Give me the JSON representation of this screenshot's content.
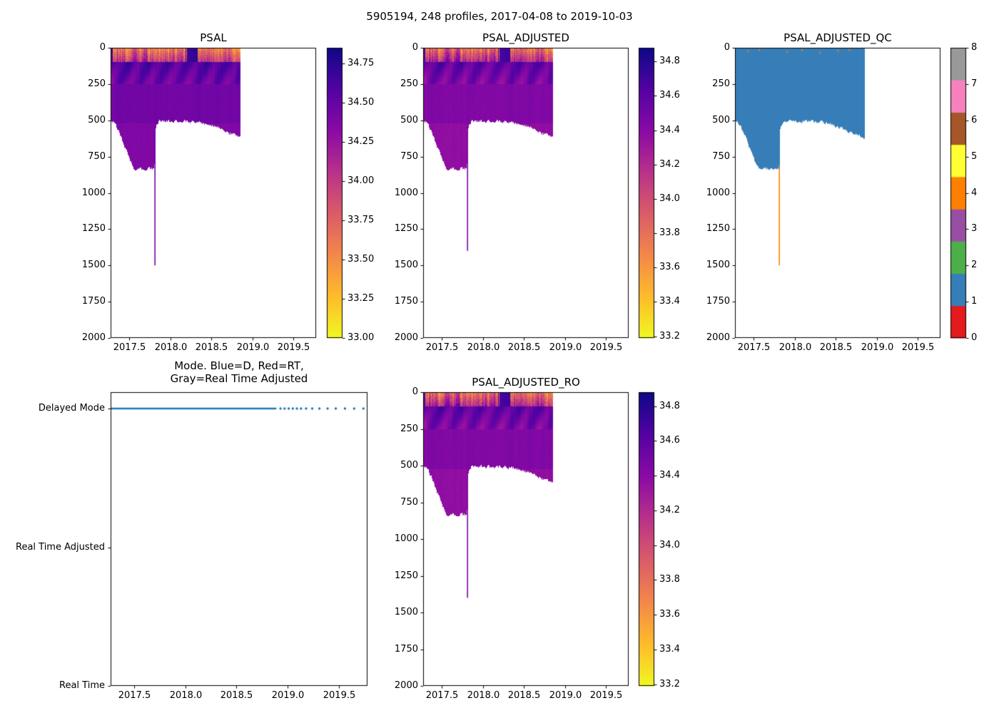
{
  "figure": {
    "title": "5905194, 248 profiles, 2017-04-08 to 2019-10-03"
  },
  "chart_data": [
    {
      "id": "psal",
      "type": "heatmap",
      "title": "PSAL",
      "xlim": [
        2017.27,
        2019.78
      ],
      "ylim": [
        2000,
        0
      ],
      "x_tick_labels": [
        "2017.5",
        "2018.0",
        "2018.5",
        "2019.0",
        "2019.5"
      ],
      "x_tick_values": [
        2017.5,
        2018.0,
        2018.5,
        2019.0,
        2019.5
      ],
      "y_tick_labels": [
        "0",
        "250",
        "500",
        "750",
        "1000",
        "1250",
        "1500",
        "1750",
        "2000"
      ],
      "y_tick_values": [
        0,
        250,
        500,
        750,
        1000,
        1250,
        1500,
        1750,
        2000
      ],
      "colormap": "plasma_reversed",
      "colorbar": {
        "vmin": 33.0,
        "vmax": 34.85,
        "tick_labels": [
          "34.75",
          "34.50",
          "34.25",
          "34.00",
          "33.75",
          "33.50",
          "33.25",
          "33.00"
        ],
        "tick_values": [
          34.75,
          34.5,
          34.25,
          34.0,
          33.75,
          33.5,
          33.25,
          33.0
        ]
      },
      "data": {
        "time_start": 2017.27,
        "time_end": 2018.85,
        "surface": {
          "max_depth": 95,
          "salinity_range": [
            33.0,
            34.2
          ],
          "dark_patch_salinity_range": [
            34.55,
            34.85
          ]
        },
        "subsurface": {
          "depth_range": [
            95,
            250
          ],
          "salinity_range": [
            34.2,
            34.8
          ]
        },
        "body": {
          "depth_range": [
            250,
            520
          ],
          "salinity_center": 34.44
        },
        "deep": {
          "salinity_center": 34.37
        },
        "bottom_depth_profile": [
          [
            2017.27,
            500
          ],
          [
            2017.32,
            520
          ],
          [
            2017.38,
            590
          ],
          [
            2017.44,
            680
          ],
          [
            2017.5,
            770
          ],
          [
            2017.56,
            830
          ],
          [
            2017.8,
            830
          ],
          [
            2017.82,
            540
          ],
          [
            2017.86,
            505
          ],
          [
            2018.3,
            505
          ],
          [
            2018.45,
            525
          ],
          [
            2018.6,
            555
          ],
          [
            2018.72,
            585
          ],
          [
            2018.85,
            620
          ]
        ],
        "spike": {
          "time": 2017.805,
          "depth": 1500,
          "salinity": 34.45
        }
      }
    },
    {
      "id": "psal_adjusted",
      "type": "heatmap",
      "title": "PSAL_ADJUSTED",
      "xlim": [
        2017.27,
        2019.78
      ],
      "ylim": [
        2000,
        0
      ],
      "x_tick_labels": [
        "2017.5",
        "2018.0",
        "2018.5",
        "2019.0",
        "2019.5"
      ],
      "x_tick_values": [
        2017.5,
        2018.0,
        2018.5,
        2019.0,
        2019.5
      ],
      "y_tick_labels": [
        "0",
        "250",
        "500",
        "750",
        "1000",
        "1250",
        "1500",
        "1750",
        "2000"
      ],
      "y_tick_values": [
        0,
        250,
        500,
        750,
        1000,
        1250,
        1500,
        1750,
        2000
      ],
      "colormap": "plasma_reversed",
      "colorbar": {
        "vmin": 33.19,
        "vmax": 34.88,
        "tick_labels": [
          "34.8",
          "34.6",
          "34.4",
          "34.2",
          "34.0",
          "33.8",
          "33.6",
          "33.4",
          "33.2"
        ],
        "tick_values": [
          34.8,
          34.6,
          34.4,
          34.2,
          34.0,
          33.8,
          33.6,
          33.4,
          33.2
        ]
      },
      "data": {
        "time_start": 2017.27,
        "time_end": 2018.85,
        "surface": {
          "max_depth": 95,
          "salinity_range": [
            33.2,
            34.2
          ],
          "dark_patch_salinity_range": [
            34.55,
            34.88
          ]
        },
        "subsurface": {
          "depth_range": [
            95,
            250
          ],
          "salinity_range": [
            34.2,
            34.8
          ]
        },
        "body": {
          "depth_range": [
            250,
            520
          ],
          "salinity_center": 34.44
        },
        "deep": {
          "salinity_center": 34.37
        },
        "bottom_depth_profile": [
          [
            2017.27,
            500
          ],
          [
            2017.32,
            520
          ],
          [
            2017.38,
            590
          ],
          [
            2017.44,
            680
          ],
          [
            2017.5,
            770
          ],
          [
            2017.56,
            830
          ],
          [
            2017.8,
            830
          ],
          [
            2017.82,
            540
          ],
          [
            2017.86,
            505
          ],
          [
            2018.3,
            505
          ],
          [
            2018.45,
            525
          ],
          [
            2018.6,
            555
          ],
          [
            2018.72,
            585
          ],
          [
            2018.85,
            620
          ]
        ],
        "spike": {
          "time": 2017.805,
          "depth": 1400,
          "salinity": 34.45
        }
      }
    },
    {
      "id": "psal_adjusted_qc",
      "type": "heatmap",
      "title": "PSAL_ADJUSTED_QC",
      "xlim": [
        2017.27,
        2019.78
      ],
      "ylim": [
        2000,
        0
      ],
      "x_tick_labels": [
        "2017.5",
        "2018.0",
        "2018.5",
        "2019.0",
        "2019.5"
      ],
      "x_tick_values": [
        2017.5,
        2018.0,
        2018.5,
        2019.0,
        2019.5
      ],
      "y_tick_labels": [
        "0",
        "250",
        "500",
        "750",
        "1000",
        "1250",
        "1500",
        "1750",
        "2000"
      ],
      "y_tick_values": [
        0,
        250,
        500,
        750,
        1000,
        1250,
        1500,
        1750,
        2000
      ],
      "colormap": "qc_discrete",
      "colorbar": {
        "discrete": true,
        "tick_labels": [
          "0",
          "1",
          "2",
          "3",
          "4",
          "5",
          "6",
          "7",
          "8"
        ],
        "tick_values": [
          0,
          1,
          2,
          3,
          4,
          5,
          6,
          7,
          8
        ],
        "colors": [
          "#e41a1c",
          "#377eb8",
          "#4daf4a",
          "#984ea3",
          "#ff7f00",
          "#ffff33",
          "#a65628",
          "#f781bf",
          "#999999"
        ]
      },
      "data": {
        "time_start": 2017.27,
        "time_end": 2018.85,
        "main_qc_flag": 1,
        "main_qc_color": "#377eb8",
        "bottom_depth_profile": [
          [
            2017.27,
            500
          ],
          [
            2017.32,
            520
          ],
          [
            2017.38,
            590
          ],
          [
            2017.44,
            680
          ],
          [
            2017.5,
            770
          ],
          [
            2017.56,
            830
          ],
          [
            2017.8,
            830
          ],
          [
            2017.82,
            540
          ],
          [
            2017.86,
            505
          ],
          [
            2018.3,
            505
          ],
          [
            2018.45,
            525
          ],
          [
            2018.6,
            555
          ],
          [
            2018.72,
            585
          ],
          [
            2018.85,
            620
          ]
        ],
        "spike": {
          "time": 2017.805,
          "depth": 1500,
          "qc_flag": 4,
          "qc_color": "#ff7f00",
          "flag_below_depth": 830
        },
        "surface_specks": {
          "qc_flag": 4,
          "qc_color": "#ff7f00",
          "points": [
            [
              2017.42,
              18
            ],
            [
              2017.56,
              10
            ],
            [
              2017.9,
              22
            ],
            [
              2018.08,
              12
            ],
            [
              2018.3,
              28
            ],
            [
              2018.52,
              15
            ],
            [
              2018.66,
              10
            ]
          ]
        }
      }
    },
    {
      "id": "mode",
      "type": "scatter",
      "title_lines": [
        "Mode. Blue=D, Red=RT,",
        "Gray=Real Time Adjusted"
      ],
      "xlim": [
        2017.27,
        2019.78
      ],
      "x_tick_labels": [
        "2017.5",
        "2018.0",
        "2018.5",
        "2019.0",
        "2019.5"
      ],
      "x_tick_values": [
        2017.5,
        2018.0,
        2018.5,
        2019.0,
        2019.5
      ],
      "y_categories": [
        "Real Time",
        "Real Time Adjusted",
        "Delayed Mode"
      ],
      "legend": {
        "D": "Blue",
        "RT": "Red",
        "Real Time Adjusted": "Gray"
      },
      "series": [
        {
          "name": "Delayed Mode",
          "category": "Delayed Mode",
          "color": "#1f77b4",
          "dense_start": 2017.27,
          "dense_end": 2018.89,
          "sparse_points": [
            2018.93,
            2018.97,
            2019.01,
            2019.05,
            2019.09,
            2019.13,
            2019.18,
            2019.24,
            2019.31,
            2019.39,
            2019.47,
            2019.56,
            2019.65,
            2019.74
          ]
        }
      ]
    },
    {
      "id": "psal_adjusted_ro",
      "type": "heatmap",
      "title": "PSAL_ADJUSTED_RO",
      "xlim": [
        2017.27,
        2019.78
      ],
      "ylim": [
        2000,
        0
      ],
      "x_tick_labels": [
        "2017.5",
        "2018.0",
        "2018.5",
        "2019.0",
        "2019.5"
      ],
      "x_tick_values": [
        2017.5,
        2018.0,
        2018.5,
        2019.0,
        2019.5
      ],
      "y_tick_labels": [
        "0",
        "250",
        "500",
        "750",
        "1000",
        "1250",
        "1500",
        "1750",
        "2000"
      ],
      "y_tick_values": [
        0,
        250,
        500,
        750,
        1000,
        1250,
        1500,
        1750,
        2000
      ],
      "colormap": "plasma_reversed",
      "colorbar": {
        "vmin": 33.19,
        "vmax": 34.88,
        "tick_labels": [
          "34.8",
          "34.6",
          "34.4",
          "34.2",
          "34.0",
          "33.8",
          "33.6",
          "33.4",
          "33.2"
        ],
        "tick_values": [
          34.8,
          34.6,
          34.4,
          34.2,
          34.0,
          33.8,
          33.6,
          33.4,
          33.2
        ]
      },
      "data": {
        "time_start": 2017.27,
        "time_end": 2018.85,
        "surface": {
          "max_depth": 95,
          "salinity_range": [
            33.2,
            34.2
          ],
          "dark_patch_salinity_range": [
            34.55,
            34.88
          ]
        },
        "subsurface": {
          "depth_range": [
            95,
            250
          ],
          "salinity_range": [
            34.2,
            34.8
          ]
        },
        "body": {
          "depth_range": [
            250,
            520
          ],
          "salinity_center": 34.44
        },
        "deep": {
          "salinity_center": 34.37
        },
        "bottom_depth_profile": [
          [
            2017.27,
            500
          ],
          [
            2017.32,
            520
          ],
          [
            2017.38,
            590
          ],
          [
            2017.44,
            680
          ],
          [
            2017.5,
            770
          ],
          [
            2017.56,
            830
          ],
          [
            2017.8,
            830
          ],
          [
            2017.82,
            540
          ],
          [
            2017.86,
            505
          ],
          [
            2018.3,
            505
          ],
          [
            2018.45,
            525
          ],
          [
            2018.6,
            555
          ],
          [
            2018.72,
            585
          ],
          [
            2018.85,
            620
          ]
        ],
        "spike": {
          "time": 2017.805,
          "depth": 1400,
          "salinity": 34.45
        }
      }
    }
  ]
}
